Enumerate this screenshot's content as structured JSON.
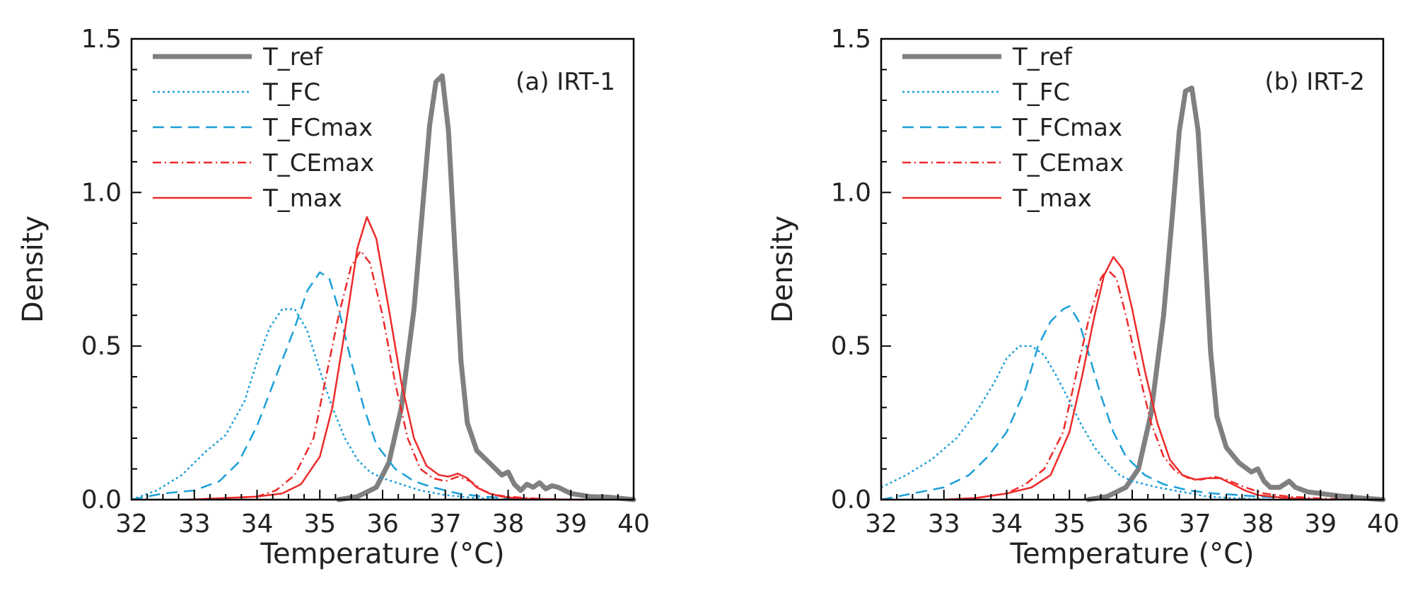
{
  "chart_data": [
    {
      "type": "line",
      "panel_label": "(a) IRT-1",
      "xlabel": "Temperature (°C)",
      "ylabel": "Density",
      "xlim": [
        32,
        40
      ],
      "ylim": [
        0,
        1.5
      ],
      "x_ticks": [
        32,
        33,
        34,
        35,
        36,
        37,
        38,
        39,
        40
      ],
      "x_tick_labels": [
        "32",
        "33",
        "34",
        "35",
        "36",
        "37",
        "38",
        "39",
        "40"
      ],
      "y_ticks": [
        0,
        0.5,
        1.0,
        1.5
      ],
      "y_tick_labels": [
        "0.0",
        "0.5",
        "1.0",
        "1.5"
      ],
      "legend_position": "top-left",
      "series": [
        {
          "name": "T_ref",
          "color": "#808080",
          "style": "solid-thick",
          "x": [
            35.3,
            35.6,
            35.9,
            36.1,
            36.3,
            36.5,
            36.65,
            36.75,
            36.85,
            36.95,
            37.05,
            37.15,
            37.25,
            37.35,
            37.5,
            37.7,
            37.9,
            38.0,
            38.1,
            38.2,
            38.3,
            38.4,
            38.5,
            38.6,
            38.7,
            38.8,
            39.0,
            39.3,
            39.6,
            40.0
          ],
          "y": [
            0.0,
            0.01,
            0.04,
            0.12,
            0.3,
            0.62,
            0.98,
            1.22,
            1.36,
            1.38,
            1.2,
            0.82,
            0.45,
            0.25,
            0.16,
            0.12,
            0.08,
            0.09,
            0.05,
            0.03,
            0.05,
            0.04,
            0.055,
            0.035,
            0.045,
            0.04,
            0.02,
            0.01,
            0.008,
            0.0
          ]
        },
        {
          "name": "T_FC",
          "color": "#1a9fd8",
          "style": "dotted",
          "x": [
            32.0,
            32.4,
            32.8,
            33.2,
            33.5,
            33.8,
            34.0,
            34.2,
            34.4,
            34.6,
            34.8,
            35.0,
            35.2,
            35.4,
            35.6,
            35.8,
            36.0,
            36.3,
            36.6,
            37.0,
            37.5,
            38.0
          ],
          "y": [
            0.0,
            0.03,
            0.08,
            0.16,
            0.21,
            0.32,
            0.45,
            0.56,
            0.62,
            0.62,
            0.55,
            0.42,
            0.3,
            0.2,
            0.13,
            0.09,
            0.07,
            0.05,
            0.03,
            0.015,
            0.005,
            0.0
          ]
        },
        {
          "name": "T_FCmax",
          "color": "#1a9fd8",
          "style": "dashed",
          "x": [
            32.0,
            32.5,
            33.0,
            33.4,
            33.7,
            34.0,
            34.3,
            34.6,
            34.8,
            35.0,
            35.15,
            35.3,
            35.5,
            35.7,
            35.9,
            36.2,
            36.5,
            36.8,
            37.2,
            37.6,
            38.0,
            38.5
          ],
          "y": [
            0.0,
            0.02,
            0.03,
            0.06,
            0.12,
            0.24,
            0.4,
            0.56,
            0.68,
            0.74,
            0.72,
            0.62,
            0.45,
            0.3,
            0.18,
            0.1,
            0.06,
            0.04,
            0.02,
            0.01,
            0.005,
            0.0
          ]
        },
        {
          "name": "T_CEmax",
          "color": "#ee2a2a",
          "style": "dashdot",
          "x": [
            32.9,
            33.5,
            34.0,
            34.3,
            34.6,
            34.9,
            35.1,
            35.3,
            35.5,
            35.65,
            35.8,
            36.0,
            36.2,
            36.4,
            36.6,
            36.8,
            37.0,
            37.2,
            37.4,
            37.6,
            37.8,
            38.0,
            38.3,
            38.6,
            39.0
          ],
          "y": [
            0.0,
            0.005,
            0.01,
            0.03,
            0.08,
            0.2,
            0.4,
            0.6,
            0.76,
            0.81,
            0.77,
            0.6,
            0.38,
            0.2,
            0.1,
            0.07,
            0.06,
            0.075,
            0.06,
            0.03,
            0.015,
            0.01,
            0.005,
            0.002,
            0.0
          ]
        },
        {
          "name": "T_max",
          "color": "#ee2a2a",
          "style": "solid",
          "x": [
            32.9,
            33.5,
            34.0,
            34.4,
            34.7,
            35.0,
            35.2,
            35.4,
            35.6,
            35.75,
            35.9,
            36.1,
            36.3,
            36.5,
            36.7,
            36.9,
            37.05,
            37.2,
            37.35,
            37.5,
            37.7,
            37.9,
            38.1,
            38.4,
            38.8,
            39.2
          ],
          "y": [
            0.0,
            0.005,
            0.01,
            0.02,
            0.05,
            0.14,
            0.3,
            0.55,
            0.82,
            0.92,
            0.85,
            0.62,
            0.38,
            0.2,
            0.11,
            0.08,
            0.075,
            0.085,
            0.07,
            0.04,
            0.02,
            0.01,
            0.005,
            0.002,
            0.001,
            0.0
          ]
        }
      ]
    },
    {
      "type": "line",
      "panel_label": "(b) IRT-2",
      "xlabel": "Temperature (°C)",
      "ylabel": "Density",
      "xlim": [
        32,
        40
      ],
      "ylim": [
        0,
        1.5
      ],
      "x_ticks": [
        32,
        33,
        34,
        35,
        36,
        37,
        38,
        39,
        40
      ],
      "x_tick_labels": [
        "32",
        "33",
        "34",
        "35",
        "36",
        "37",
        "38",
        "39",
        "40"
      ],
      "y_ticks": [
        0,
        0.5,
        1.0,
        1.5
      ],
      "y_tick_labels": [
        "0.0",
        "0.5",
        "1.0",
        "1.5"
      ],
      "legend_position": "top-left",
      "series": [
        {
          "name": "T_ref",
          "color": "#808080",
          "style": "solid-thick",
          "x": [
            35.3,
            35.6,
            35.9,
            36.1,
            36.3,
            36.5,
            36.65,
            36.75,
            36.85,
            36.95,
            37.05,
            37.15,
            37.25,
            37.35,
            37.5,
            37.7,
            37.9,
            38.0,
            38.1,
            38.2,
            38.35,
            38.5,
            38.6,
            38.8,
            39.0,
            39.3,
            39.6,
            40.0
          ],
          "y": [
            0.0,
            0.01,
            0.04,
            0.1,
            0.28,
            0.6,
            0.95,
            1.2,
            1.33,
            1.34,
            1.2,
            0.85,
            0.48,
            0.27,
            0.17,
            0.12,
            0.09,
            0.1,
            0.06,
            0.04,
            0.04,
            0.06,
            0.04,
            0.025,
            0.02,
            0.012,
            0.006,
            0.0
          ]
        },
        {
          "name": "T_FC",
          "color": "#1a9fd8",
          "style": "dotted",
          "x": [
            32.0,
            32.4,
            32.8,
            33.2,
            33.5,
            33.8,
            34.0,
            34.2,
            34.4,
            34.6,
            34.8,
            35.0,
            35.2,
            35.4,
            35.6,
            35.8,
            36.0,
            36.4,
            36.8,
            37.2,
            37.6,
            38.2
          ],
          "y": [
            0.04,
            0.08,
            0.13,
            0.2,
            0.28,
            0.38,
            0.46,
            0.5,
            0.5,
            0.47,
            0.4,
            0.32,
            0.24,
            0.17,
            0.12,
            0.08,
            0.06,
            0.04,
            0.025,
            0.01,
            0.005,
            0.0
          ]
        },
        {
          "name": "T_FCmax",
          "color": "#1a9fd8",
          "style": "dashed",
          "x": [
            32.0,
            32.5,
            33.0,
            33.4,
            33.7,
            34.0,
            34.3,
            34.5,
            34.7,
            34.9,
            35.0,
            35.15,
            35.3,
            35.5,
            35.7,
            35.9,
            36.2,
            36.5,
            36.9,
            37.3,
            37.7,
            38.0,
            38.5,
            39.0
          ],
          "y": [
            0.0,
            0.02,
            0.04,
            0.08,
            0.14,
            0.22,
            0.36,
            0.5,
            0.58,
            0.62,
            0.63,
            0.58,
            0.48,
            0.34,
            0.22,
            0.14,
            0.08,
            0.05,
            0.03,
            0.02,
            0.015,
            0.01,
            0.005,
            0.0
          ]
        },
        {
          "name": "T_CEmax",
          "color": "#ee2a2a",
          "style": "dashdot",
          "x": [
            33.0,
            33.5,
            34.0,
            34.3,
            34.6,
            34.9,
            35.1,
            35.3,
            35.5,
            35.6,
            35.75,
            35.9,
            36.1,
            36.3,
            36.5,
            36.7,
            36.9,
            37.1,
            37.3,
            37.5,
            37.8,
            38.1,
            38.5,
            39.0,
            39.5
          ],
          "y": [
            0.0,
            0.005,
            0.02,
            0.05,
            0.1,
            0.22,
            0.4,
            0.58,
            0.72,
            0.75,
            0.72,
            0.6,
            0.42,
            0.25,
            0.14,
            0.09,
            0.07,
            0.065,
            0.075,
            0.065,
            0.04,
            0.02,
            0.01,
            0.004,
            0.0
          ]
        },
        {
          "name": "T_max",
          "color": "#ee2a2a",
          "style": "solid",
          "x": [
            33.0,
            33.5,
            34.0,
            34.4,
            34.7,
            35.0,
            35.2,
            35.4,
            35.55,
            35.7,
            35.85,
            36.0,
            36.2,
            36.4,
            36.6,
            36.8,
            37.0,
            37.2,
            37.4,
            37.6,
            37.8,
            38.0,
            38.4,
            38.8,
            39.2
          ],
          "y": [
            0.0,
            0.005,
            0.02,
            0.04,
            0.08,
            0.22,
            0.4,
            0.6,
            0.73,
            0.79,
            0.75,
            0.62,
            0.42,
            0.25,
            0.13,
            0.08,
            0.065,
            0.07,
            0.07,
            0.05,
            0.03,
            0.015,
            0.006,
            0.002,
            0.0
          ]
        }
      ]
    }
  ]
}
